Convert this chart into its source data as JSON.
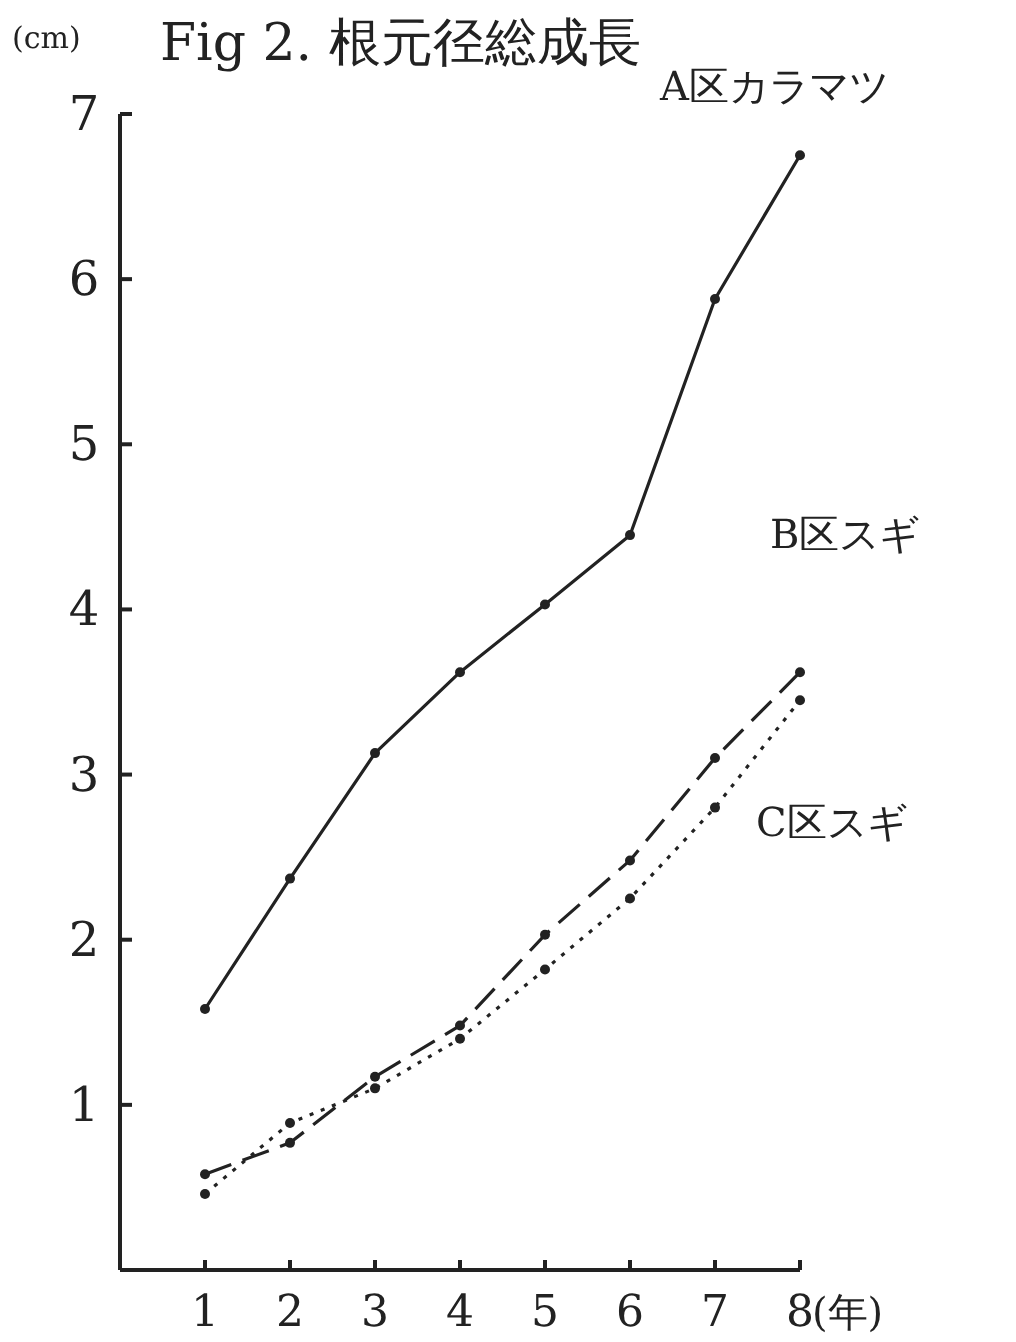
{
  "chart_data": {
    "type": "line",
    "title": "Fig 2.  根元径総成長",
    "ylabel": "(cm)",
    "xlabel": "(年)",
    "x": [
      1,
      2,
      3,
      4,
      5,
      6,
      7,
      8
    ],
    "xlim": [
      0,
      8
    ],
    "xticks": [
      1,
      2,
      3,
      4,
      5,
      6,
      7,
      8
    ],
    "ylim": [
      0,
      7
    ],
    "yticks": [
      1,
      2,
      3,
      4,
      5,
      6,
      7
    ],
    "grid": false,
    "legend": false,
    "marker": "circle",
    "series": [
      {
        "name": "A区カラマツ",
        "color": "#222222",
        "line_style": "solid",
        "values": [
          1.58,
          2.37,
          3.13,
          3.62,
          4.03,
          4.45,
          5.88,
          6.75
        ]
      },
      {
        "name": "B区スギ",
        "color": "#222222",
        "line_style": "dashed",
        "values": [
          0.58,
          0.77,
          1.17,
          1.48,
          2.03,
          2.48,
          3.1,
          3.62
        ]
      },
      {
        "name": "C区スギ",
        "color": "#222222",
        "line_style": "dotted",
        "values": [
          0.46,
          0.89,
          1.1,
          1.4,
          1.82,
          2.25,
          2.8,
          3.45
        ]
      }
    ]
  }
}
